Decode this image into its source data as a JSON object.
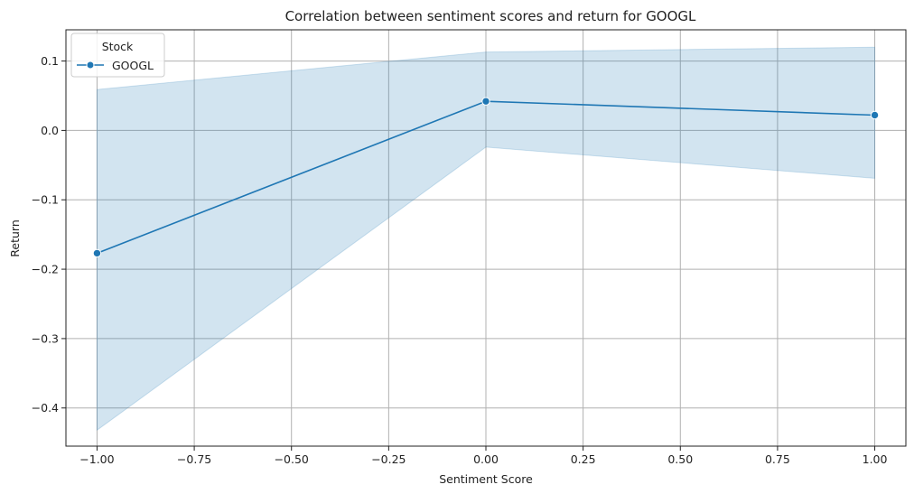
{
  "chart_data": {
    "type": "line",
    "title": "Correlation between sentiment scores and return for GOOGL",
    "xlabel": "Sentiment Score",
    "ylabel": "Return",
    "xlim": [
      -1.08,
      1.08
    ],
    "ylim": [
      -0.455,
      0.145
    ],
    "xticks": [
      -1.0,
      -0.75,
      -0.5,
      -0.25,
      0.0,
      0.25,
      0.5,
      0.75,
      1.0
    ],
    "xtick_labels": [
      "−1.00",
      "−0.75",
      "−0.50",
      "−0.25",
      "0.00",
      "0.25",
      "0.50",
      "0.75",
      "1.00"
    ],
    "yticks": [
      -0.4,
      -0.3,
      -0.2,
      -0.1,
      0.0,
      0.1
    ],
    "ytick_labels": [
      "−0.4",
      "−0.3",
      "−0.2",
      "−0.1",
      "0.0",
      "0.1"
    ],
    "grid": true,
    "legend": {
      "title": "Stock",
      "placement": "top-left"
    },
    "series": [
      {
        "name": "GOOGL",
        "color": "#1f77b4",
        "marker": "circle",
        "x": [
          -1.0,
          0.0,
          1.0
        ],
        "y": [
          -0.177,
          0.042,
          0.022
        ],
        "ci_lower": [
          -0.432,
          -0.024,
          -0.069
        ],
        "ci_upper": [
          0.059,
          0.113,
          0.12
        ]
      }
    ]
  }
}
